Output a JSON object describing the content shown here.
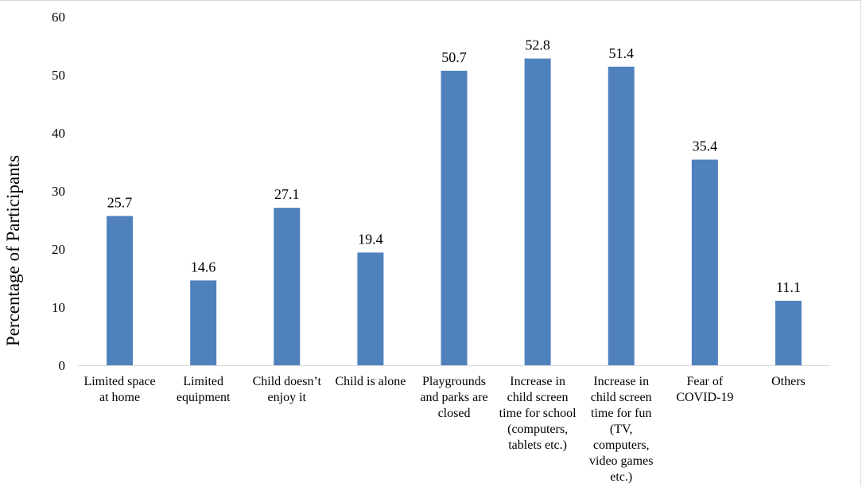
{
  "chart_data": {
    "type": "bar",
    "title": "",
    "xlabel": "",
    "ylabel": "Percentage of Participants",
    "ylim": [
      0,
      60
    ],
    "yticks": [
      "0",
      "10",
      "20",
      "30",
      "40",
      "50",
      "60"
    ],
    "grid": false,
    "bar_color": "#4f81bd",
    "categories": [
      [
        "Limited space",
        "at home"
      ],
      [
        "Limited",
        "equipment"
      ],
      [
        "Child doesn’t",
        "enjoy it"
      ],
      [
        "Child is alone"
      ],
      [
        "Playgrounds",
        "and parks are",
        "closed"
      ],
      [
        "Increase in",
        "child screen",
        "time for school",
        "(computers,",
        "tablets etc.)"
      ],
      [
        "Increase in",
        "child screen",
        "time for fun",
        "(TV,",
        "computers,",
        "video games",
        "etc.)"
      ],
      [
        "Fear of",
        "COVID-19"
      ],
      [
        "Others"
      ]
    ],
    "values": [
      25.7,
      14.6,
      27.1,
      19.4,
      50.7,
      52.8,
      51.4,
      35.4,
      11.1
    ],
    "data_labels": [
      "25.7",
      "14.6",
      "27.1",
      "19.4",
      "50.7",
      "52.8",
      "51.4",
      "35.4",
      "11.1"
    ]
  }
}
